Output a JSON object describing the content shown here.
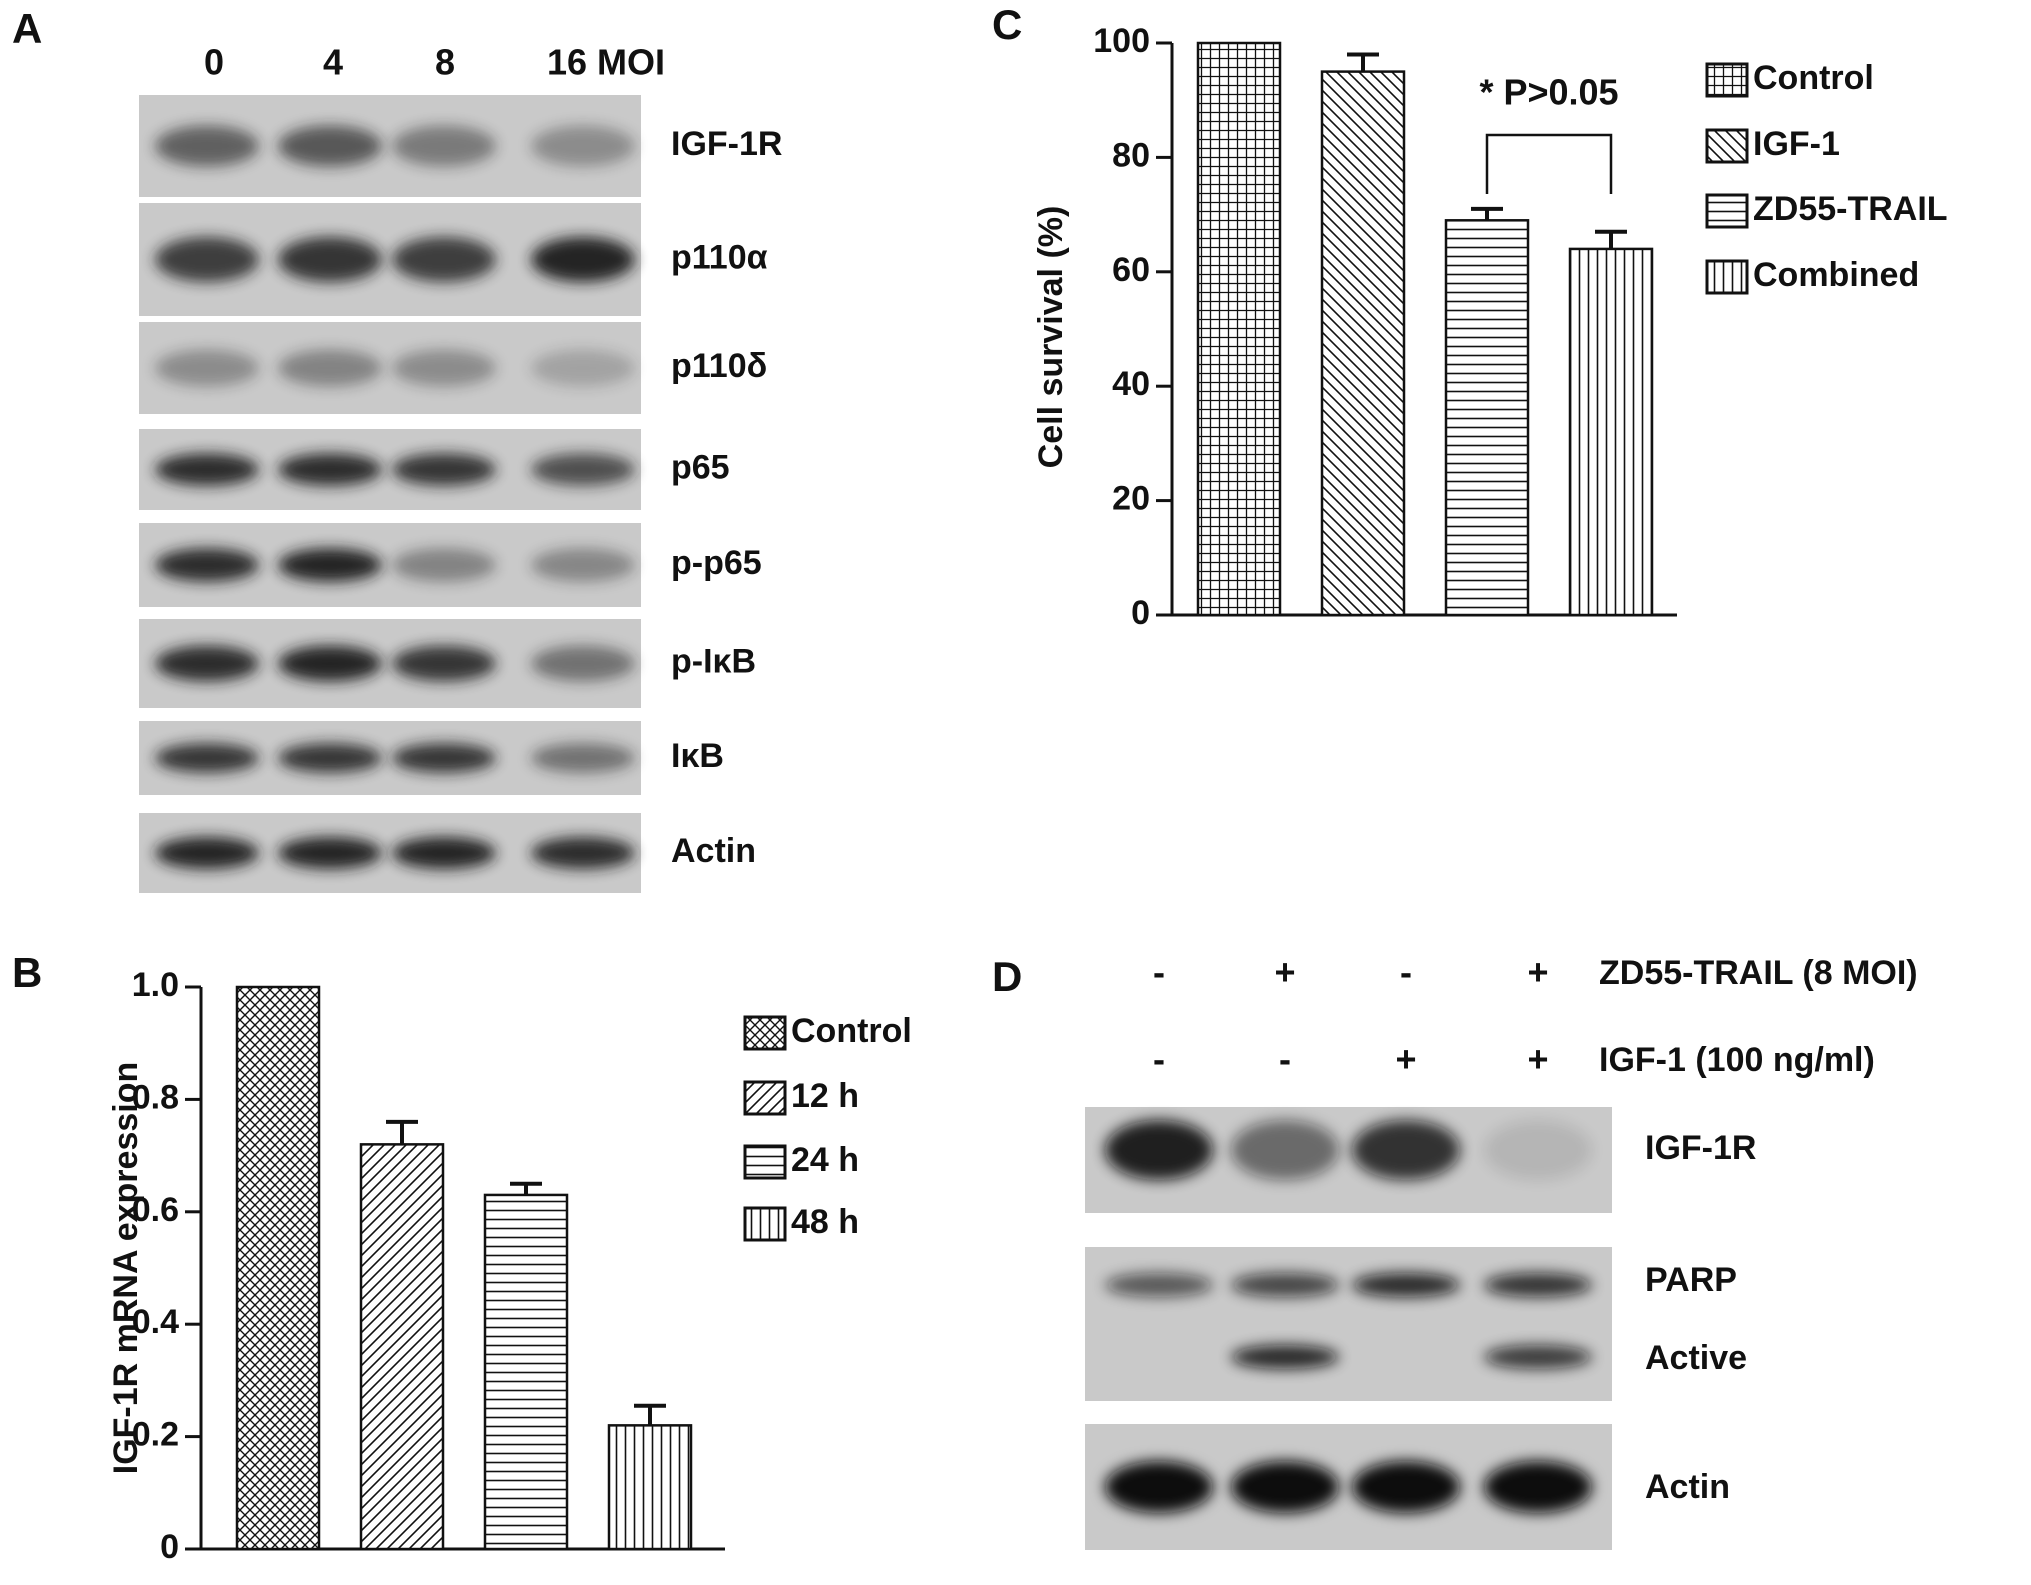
{
  "figure": {
    "panel_labels": [
      "A",
      "B",
      "C",
      "D"
    ]
  },
  "blots": [
    {
      "lanes": [
        "0",
        "4",
        "8",
        "16 MOI"
      ],
      "rows": [
        "IGF-1R",
        "p110α",
        "p110δ",
        "p65",
        "p-p65",
        "p-IκB",
        "IκB",
        "Actin"
      ]
    },
    {
      "conditions": [
        {
          "label": "ZD55-TRAIL (8 MOI)",
          "signs": [
            "-",
            "+",
            "-",
            "+"
          ]
        },
        {
          "label": "IGF-1 (100 ng/ml)",
          "signs": [
            "-",
            "-",
            "+",
            "+"
          ]
        }
      ],
      "rows": [
        [
          "IGF-1R"
        ],
        [
          "PARP",
          "Active"
        ],
        [
          "Actin"
        ]
      ]
    }
  ],
  "chart_data": [
    {
      "type": "bar",
      "ylabel": "IGF-1R mRNA expression",
      "ylim": [
        0,
        1
      ],
      "yticks": [
        0,
        0.2,
        0.4,
        0.6,
        0.8,
        {
          "value": 1,
          "label": "1.0"
        }
      ],
      "series": [
        {
          "name": "Control",
          "pattern": "crossdiag",
          "values": [
            1
          ]
        },
        {
          "name": "12 h",
          "pattern": "diag",
          "values": [
            0.72
          ],
          "errors": [
            0.04
          ]
        },
        {
          "name": "24 h",
          "pattern": "hlines",
          "values": [
            0.63
          ],
          "errors": [
            0.02
          ]
        },
        {
          "name": "48 h",
          "pattern": "vlines",
          "values": [
            0.22
          ],
          "errors": [
            0.035
          ]
        }
      ]
    },
    {
      "type": "bar",
      "ylabel": "Cell survival (%)",
      "ylim": [
        0,
        100
      ],
      "yticks": [
        0,
        20,
        40,
        60,
        80,
        100
      ],
      "annotation": "* P>0.05",
      "series": [
        {
          "name": "Control",
          "pattern": "grid",
          "values": [
            100
          ]
        },
        {
          "name": "IGF-1",
          "pattern": "bdiag",
          "values": [
            95
          ],
          "errors": [
            3
          ]
        },
        {
          "name": "ZD55-TRAIL",
          "pattern": "hlines",
          "values": [
            69
          ],
          "errors": [
            2
          ]
        },
        {
          "name": "Combined",
          "pattern": "vlines",
          "values": [
            64
          ],
          "errors": [
            3
          ]
        }
      ]
    }
  ]
}
